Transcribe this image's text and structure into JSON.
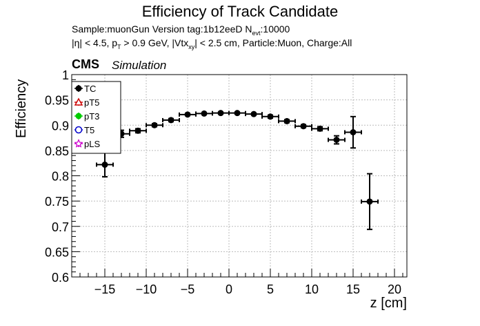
{
  "title": "Efficiency of Track Candidate",
  "subtitle_sample": "Sample:muonGun   Version tag:1b12eeD  N",
  "subtitle_sample_sub": "evt",
  "subtitle_sample_tail": ":10000",
  "subtitle_cuts": {
    "p1": "|η| < 4.5, p",
    "s1": "T",
    "p2": " > 0.9 GeV, |Vtx",
    "s2": "xy",
    "p3": "| < 2.5 cm, Particle:Muon, Charge:All"
  },
  "cms_label": "CMS",
  "simulation_label": "Simulation",
  "chart_data": {
    "type": "scatter",
    "xlabel": "z [cm]",
    "ylabel": "Efficiency",
    "xlim": [
      -19,
      21.5
    ],
    "ylim": [
      0.6,
      1.0
    ],
    "grid": true,
    "legend_placement": "top-left",
    "x_ticks": [
      -15,
      -10,
      -5,
      0,
      5,
      10,
      15,
      20
    ],
    "x_tick_labels": [
      "−15",
      "−10",
      "−5",
      "0",
      "5",
      "10",
      "15",
      "20"
    ],
    "y_ticks": [
      0.6,
      0.65,
      0.7,
      0.75,
      0.8,
      0.85,
      0.9,
      0.95,
      1.0
    ],
    "y_tick_labels": [
      "0.6",
      "0.65",
      "0.7",
      "0.75",
      "0.8",
      "0.85",
      "0.9",
      "0.95",
      "1"
    ],
    "series": [
      {
        "name": "TC",
        "color": "#000000",
        "marker": "filled-circle",
        "points": [
          {
            "x": -15,
            "y": 0.822,
            "xerr": 1,
            "yerr": 0.024
          },
          {
            "x": -13,
            "y": 0.883,
            "xerr": 1,
            "yerr": 0.007
          },
          {
            "x": -11,
            "y": 0.889,
            "xerr": 1,
            "yerr": 0.004
          },
          {
            "x": -9,
            "y": 0.9,
            "xerr": 1,
            "yerr": 0.003
          },
          {
            "x": -7,
            "y": 0.91,
            "xerr": 1,
            "yerr": 0.003
          },
          {
            "x": -5,
            "y": 0.921,
            "xerr": 1,
            "yerr": 0.002
          },
          {
            "x": -3,
            "y": 0.923,
            "xerr": 1,
            "yerr": 0.002
          },
          {
            "x": -1,
            "y": 0.924,
            "xerr": 1,
            "yerr": 0.002
          },
          {
            "x": 1,
            "y": 0.924,
            "xerr": 1,
            "yerr": 0.002
          },
          {
            "x": 3,
            "y": 0.922,
            "xerr": 1,
            "yerr": 0.002
          },
          {
            "x": 5,
            "y": 0.917,
            "xerr": 1,
            "yerr": 0.003
          },
          {
            "x": 7,
            "y": 0.908,
            "xerr": 1,
            "yerr": 0.003
          },
          {
            "x": 9,
            "y": 0.898,
            "xerr": 1,
            "yerr": 0.003
          },
          {
            "x": 11,
            "y": 0.893,
            "xerr": 1,
            "yerr": 0.004
          },
          {
            "x": 13,
            "y": 0.871,
            "xerr": 1,
            "yerr": 0.008
          },
          {
            "x": 15,
            "y": 0.886,
            "xerr": 1,
            "yerr": 0.031
          },
          {
            "x": 17,
            "y": 0.749,
            "xerr": 1,
            "yerr": 0.055
          }
        ]
      },
      {
        "name": "pT5",
        "color": "#cc0000",
        "marker": "open-triangle",
        "points": []
      },
      {
        "name": "pT3",
        "color": "#00cc00",
        "marker": "filled-circle",
        "points": []
      },
      {
        "name": "T5",
        "color": "#0000cc",
        "marker": "open-circle",
        "points": []
      },
      {
        "name": "pLS",
        "color": "#cc00cc",
        "marker": "open-star",
        "points": []
      }
    ]
  }
}
